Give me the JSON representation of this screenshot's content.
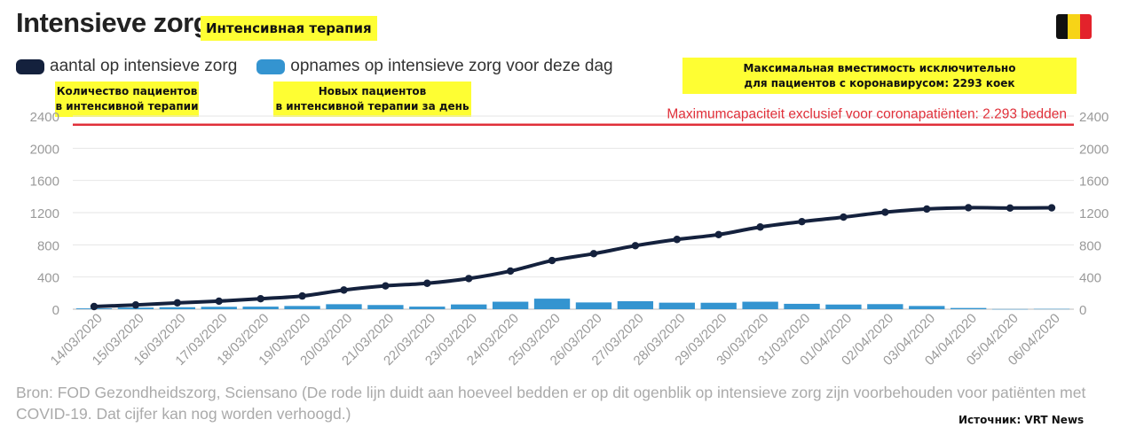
{
  "title": "Intensieve zorg",
  "title_ru": "Интенсивная терапия",
  "flag": {
    "colors": [
      "#111111",
      "#f7d417",
      "#e3222b"
    ]
  },
  "legend": [
    {
      "label": "aantal op intensieve zorg",
      "color": "#14213d"
    },
    {
      "label": "opnames op intensieve zorg voor deze dag",
      "color": "#3494d0"
    }
  ],
  "annotations": {
    "count_ru_1": "Количество пациентов",
    "count_ru_2": "в интенсивной терапии",
    "new_ru_1": "Новых пациентов",
    "new_ru_2": "в интенсивной терапии за день",
    "max_ru_1": "Максимальная вместимость исключительно",
    "max_ru_2": "для пациентов с коронавирусом: 2293 коек",
    "max_line_label": "Maximumcapaciteit exclusief voor coronapatiënten: 2.293 bedden"
  },
  "source": "Bron: FOD Gezondheidszorg, Sciensano (De rode lijn duidt aan hoeveel bedden er op dit ogenblik op intensieve zorg zijn voorbehouden voor patiënten met COVID-19. Dat cijfer kan nog worden verhoogd.)",
  "credit": "Источник: VRT News",
  "chart_data": {
    "type": "bar+line",
    "categories": [
      "14/03/2020",
      "15/03/2020",
      "16/03/2020",
      "17/03/2020",
      "18/03/2020",
      "19/03/2020",
      "20/03/2020",
      "21/03/2020",
      "22/03/2020",
      "23/03/2020",
      "24/03/2020",
      "25/03/2020",
      "26/03/2020",
      "27/03/2020",
      "28/03/2020",
      "29/03/2020",
      "30/03/2020",
      "31/03/2020",
      "01/04/2020",
      "02/04/2020",
      "03/04/2020",
      "04/04/2020",
      "05/04/2020",
      "06/04/2020"
    ],
    "series": [
      {
        "name": "aantal op intensieve zorg",
        "type": "line",
        "color": "#14213d",
        "values": [
          33,
          53,
          79,
          100,
          130,
          164,
          238,
          290,
          322,
          381,
          474,
          605,
          690,
          789,
          867,
          927,
          1021,
          1088,
          1144,
          1205,
          1245,
          1261,
          1257,
          1260
        ]
      },
      {
        "name": "opnames op intensieve zorg voor deze dag",
        "type": "bar",
        "color": "#3494d0",
        "values": [
          10,
          20,
          25,
          30,
          32,
          40,
          62,
          52,
          32,
          59,
          93,
          131,
          84,
          99,
          81,
          80,
          93,
          67,
          58,
          63,
          40,
          15,
          2,
          4
        ]
      }
    ],
    "reference_line": {
      "value": 2293,
      "color": "#e0303a"
    },
    "y_ticks": [
      0,
      400,
      800,
      1200,
      1600,
      2000,
      2400
    ],
    "ylim": [
      0,
      2400
    ],
    "grid": true,
    "axes": "left-and-right"
  }
}
